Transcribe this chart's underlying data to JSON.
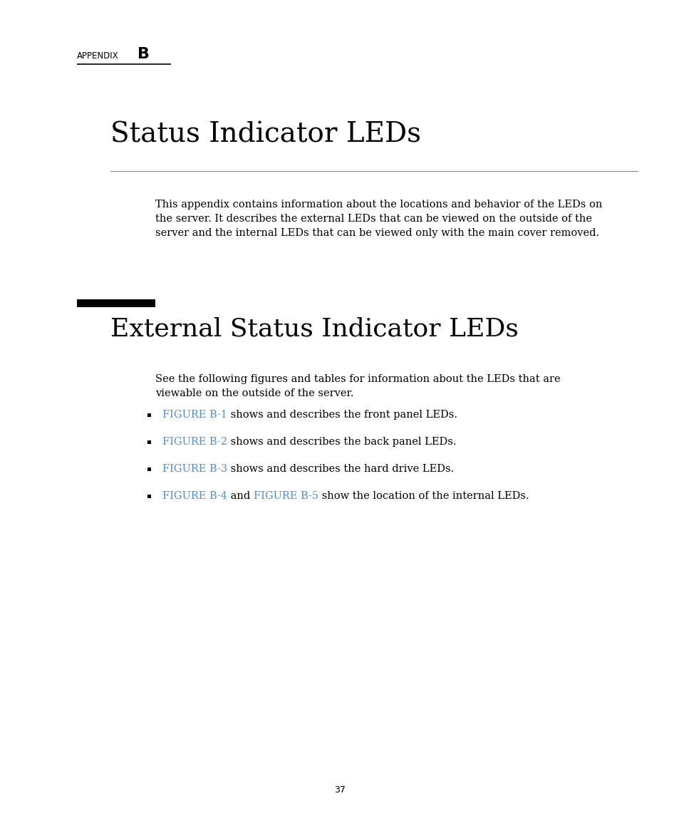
{
  "bg_color": "#ffffff",
  "appendix_label": "APPENDIX",
  "appendix_letter": "B",
  "main_title": "Status Indicator LEDs",
  "section_title": "External Status Indicator LEDs",
  "intro_text": "This appendix contains information about the locations and behavior of the LEDs on\nthe server. It describes the external LEDs that can be viewed on the outside of the\nserver and the internal LEDs that can be viewed only with the main cover removed.",
  "section_intro": "See the following figures and tables for information about the LEDs that are\nviewable on the outside of the server.",
  "bullet_items": [
    {
      "link": "FIGURE B-1",
      "rest": " shows and describes the front panel LEDs."
    },
    {
      "link": "FIGURE B-2",
      "rest": " shows and describes the back panel LEDs."
    },
    {
      "link": "FIGURE B-3",
      "rest": " shows and describes the hard drive LEDs."
    },
    {
      "link_parts": [
        "FIGURE B-4",
        " and ",
        "FIGURE B-5"
      ],
      "rest": " show the location of the internal LEDs."
    }
  ],
  "link_color": "#4a90d9",
  "text_color": "#000000",
  "page_number": "37",
  "appendix_label_fontsize": 8.5,
  "appendix_letter_fontsize": 16,
  "main_title_fontsize": 28,
  "section_title_fontsize": 26,
  "body_fontsize": 10.5,
  "bullet_fontsize": 10.5
}
